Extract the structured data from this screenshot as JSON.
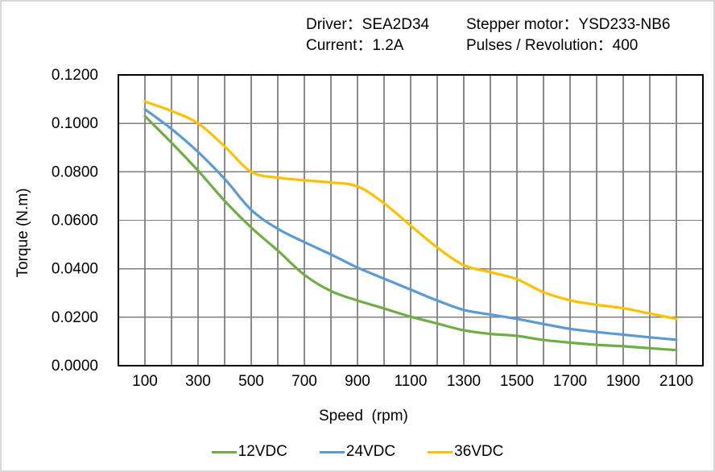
{
  "header": {
    "driver_label": "Driver：SEA2D34",
    "motor_label": "Stepper motor：YSD233-NB6",
    "current_label": "Current：1.2A",
    "pulses_label": "Pulses / Revolution：400"
  },
  "chart_data": {
    "type": "line",
    "title": "",
    "xlabel": "Speed  (rpm)",
    "ylabel": "Torque (N.m)",
    "xlim": [
      0,
      2200
    ],
    "ylim": [
      0,
      0.12
    ],
    "grid": true,
    "x_grid_step": 100,
    "y_grid_interior": [
      0.02,
      0.04,
      0.06,
      0.08,
      0.1
    ],
    "x_tick_labels": [
      "100",
      "300",
      "500",
      "700",
      "900",
      "1100",
      "1300",
      "1500",
      "1700",
      "1900",
      "2100"
    ],
    "x_tick_values": [
      100,
      300,
      500,
      700,
      900,
      1100,
      1300,
      1500,
      1700,
      1900,
      2100
    ],
    "y_tick_labels": [
      "0.0000",
      "0.0200",
      "0.0400",
      "0.0600",
      "0.0800",
      "0.1000",
      "0.1200"
    ],
    "y_tick_values": [
      0,
      0.02,
      0.04,
      0.06,
      0.08,
      0.1,
      0.12
    ],
    "legend_position": "bottom",
    "x": [
      100,
      200,
      300,
      400,
      500,
      600,
      700,
      800,
      900,
      1000,
      1100,
      1200,
      1300,
      1400,
      1500,
      1600,
      1700,
      1800,
      1900,
      2000,
      2100
    ],
    "series": [
      {
        "name": "12VDC",
        "color": "#70AD47",
        "values": [
          0.103,
          0.092,
          0.0805,
          0.068,
          0.057,
          0.0475,
          0.0375,
          0.0308,
          0.0269,
          0.0236,
          0.0202,
          0.0174,
          0.0146,
          0.0131,
          0.0123,
          0.0106,
          0.0095,
          0.0086,
          0.008,
          0.0072,
          0.0064
        ]
      },
      {
        "name": "24VDC",
        "color": "#5B9BD5",
        "values": [
          0.1058,
          0.0977,
          0.0882,
          0.0771,
          0.0643,
          0.0565,
          0.051,
          0.0459,
          0.0405,
          0.0359,
          0.0314,
          0.0269,
          0.023,
          0.0211,
          0.0193,
          0.0172,
          0.0152,
          0.0139,
          0.0128,
          0.0117,
          0.0107
        ]
      },
      {
        "name": "36VDC",
        "color": "#FFC000",
        "values": [
          0.109,
          0.1051,
          0.1,
          0.0905,
          0.08,
          0.0776,
          0.0765,
          0.0756,
          0.074,
          0.067,
          0.0578,
          0.0488,
          0.0415,
          0.0386,
          0.0357,
          0.0303,
          0.027,
          0.0251,
          0.0237,
          0.0215,
          0.0193
        ]
      }
    ],
    "colors": {
      "vertical_grid": "#1a1a1a",
      "horizontal_grid": "#7f7f7f",
      "axis_box": "#000000",
      "background": "#ffffff"
    }
  }
}
